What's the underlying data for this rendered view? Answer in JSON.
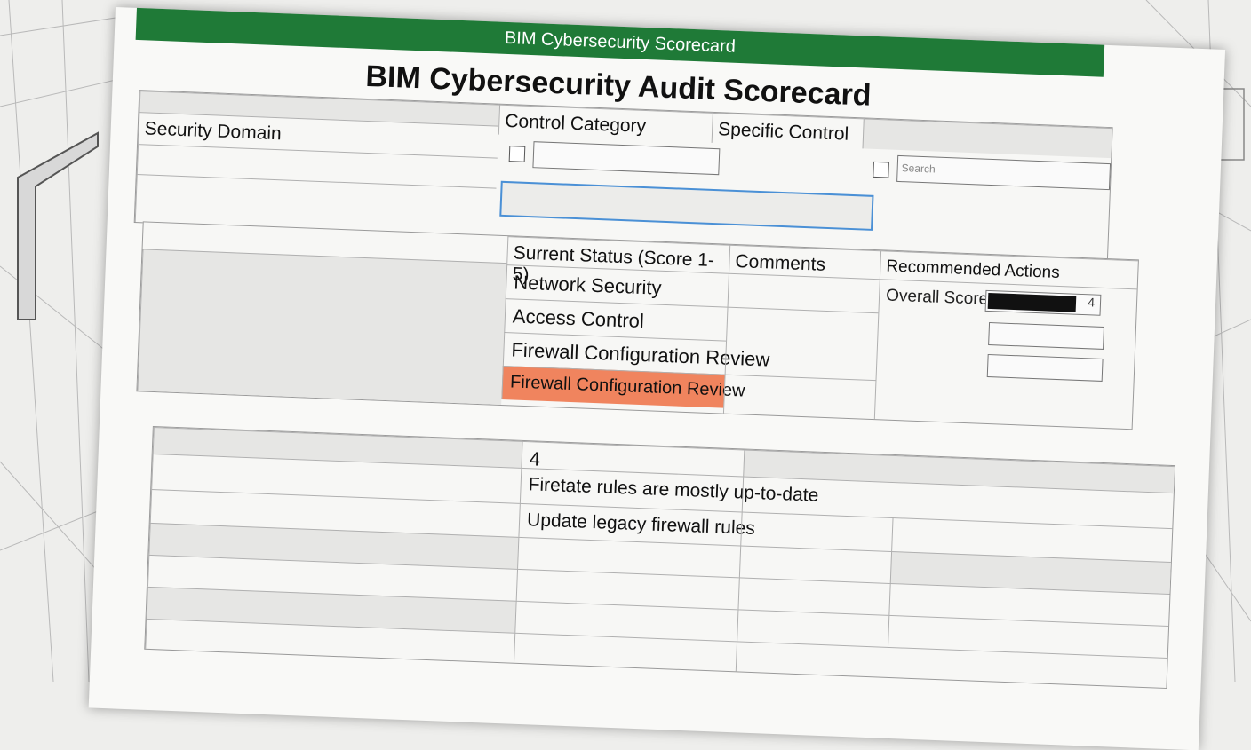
{
  "window": {
    "title": "BIM Cybersecurity Scorecard"
  },
  "page": {
    "title": "BIM Cybersecurity Audit Scorecard"
  },
  "table1": {
    "headers": [
      "Security Domain",
      "Control Category",
      "Specific Control"
    ],
    "search_placeholder": "Search"
  },
  "table2": {
    "headers": [
      "Surrent Status (Score 1-5)",
      "Comments",
      "Recommended Actions"
    ],
    "rows": [
      "Network Security",
      "Access Control",
      "Firewall Configuration Review",
      "Firewall Configuration Review"
    ],
    "overall_score_label": "Overall Score",
    "overall_score_value": "4",
    "overall_score_fraction": 0.8
  },
  "table3": {
    "score": "4",
    "comment": "Firetate rules are mostly up-to-date",
    "action": "Update legacy firewall rules"
  },
  "colors": {
    "header_green": "#1f7a37",
    "highlight_orange": "#f0845e",
    "selection_blue": "#4a90d6"
  }
}
